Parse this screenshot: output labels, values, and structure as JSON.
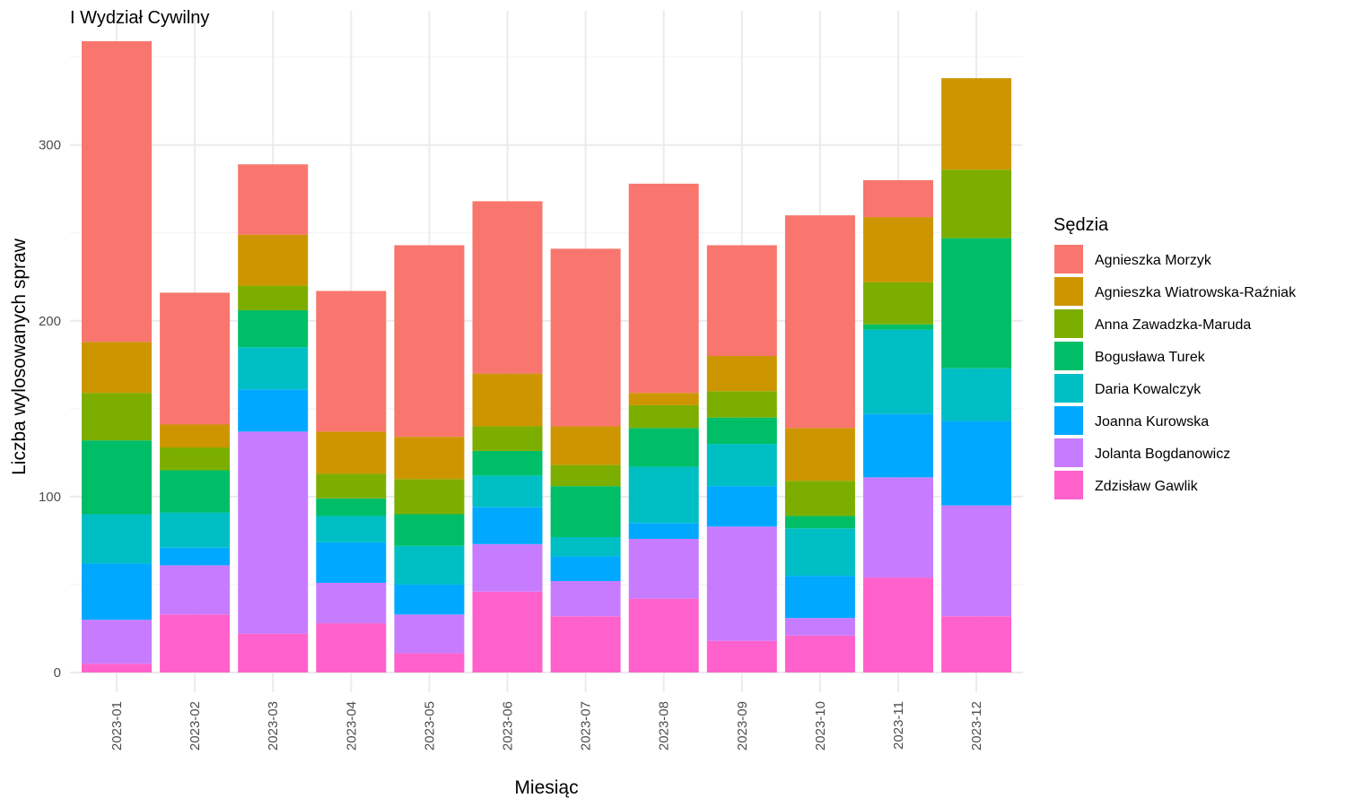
{
  "chart_data": {
    "type": "bar",
    "stacked": true,
    "title": "I Wydział Cywilny",
    "xlabel": "Miesiąc",
    "ylabel": "Liczba wylosowanych spraw",
    "ylim": [
      0,
      360
    ],
    "yticks": [
      0,
      100,
      200,
      300
    ],
    "grid": true,
    "legend_title": "Sędzia",
    "legend_position": "right",
    "categories": [
      "2023-01",
      "2023-02",
      "2023-03",
      "2023-04",
      "2023-05",
      "2023-06",
      "2023-07",
      "2023-08",
      "2023-09",
      "2023-10",
      "2023-11",
      "2023-12"
    ],
    "series": [
      {
        "name": "Agnieszka Morzyk",
        "color": "#F8766D",
        "values": [
          171,
          75,
          40,
          80,
          109,
          98,
          101,
          119,
          63,
          121,
          21,
          0
        ]
      },
      {
        "name": "Agnieszka Wiatrowska-Raźniak",
        "color": "#CD9600",
        "values": [
          29,
          13,
          29,
          24,
          24,
          30,
          22,
          7,
          20,
          30,
          37,
          52
        ]
      },
      {
        "name": "Anna Zawadzka-Maruda",
        "color": "#7CAE00",
        "values": [
          27,
          13,
          14,
          14,
          20,
          14,
          12,
          13,
          15,
          20,
          24,
          39
        ]
      },
      {
        "name": "Bogusława Turek",
        "color": "#00BE67",
        "values": [
          42,
          24,
          21,
          10,
          18,
          14,
          29,
          22,
          15,
          7,
          3,
          74
        ]
      },
      {
        "name": "Daria Kowalczyk",
        "color": "#00BFC4",
        "values": [
          28,
          20,
          24,
          15,
          22,
          18,
          11,
          32,
          24,
          27,
          48,
          30
        ]
      },
      {
        "name": "Joanna Kurowska",
        "color": "#00A9FF",
        "values": [
          32,
          10,
          24,
          23,
          17,
          21,
          14,
          9,
          23,
          24,
          36,
          48
        ]
      },
      {
        "name": "Jolanta Bogdanowicz",
        "color": "#C77CFF",
        "values": [
          25,
          28,
          115,
          23,
          22,
          27,
          20,
          34,
          65,
          10,
          57,
          63
        ]
      },
      {
        "name": "Zdzisław Gawlik",
        "color": "#FF61CC",
        "values": [
          5,
          33,
          22,
          28,
          11,
          46,
          32,
          42,
          18,
          21,
          54,
          32
        ]
      }
    ]
  }
}
